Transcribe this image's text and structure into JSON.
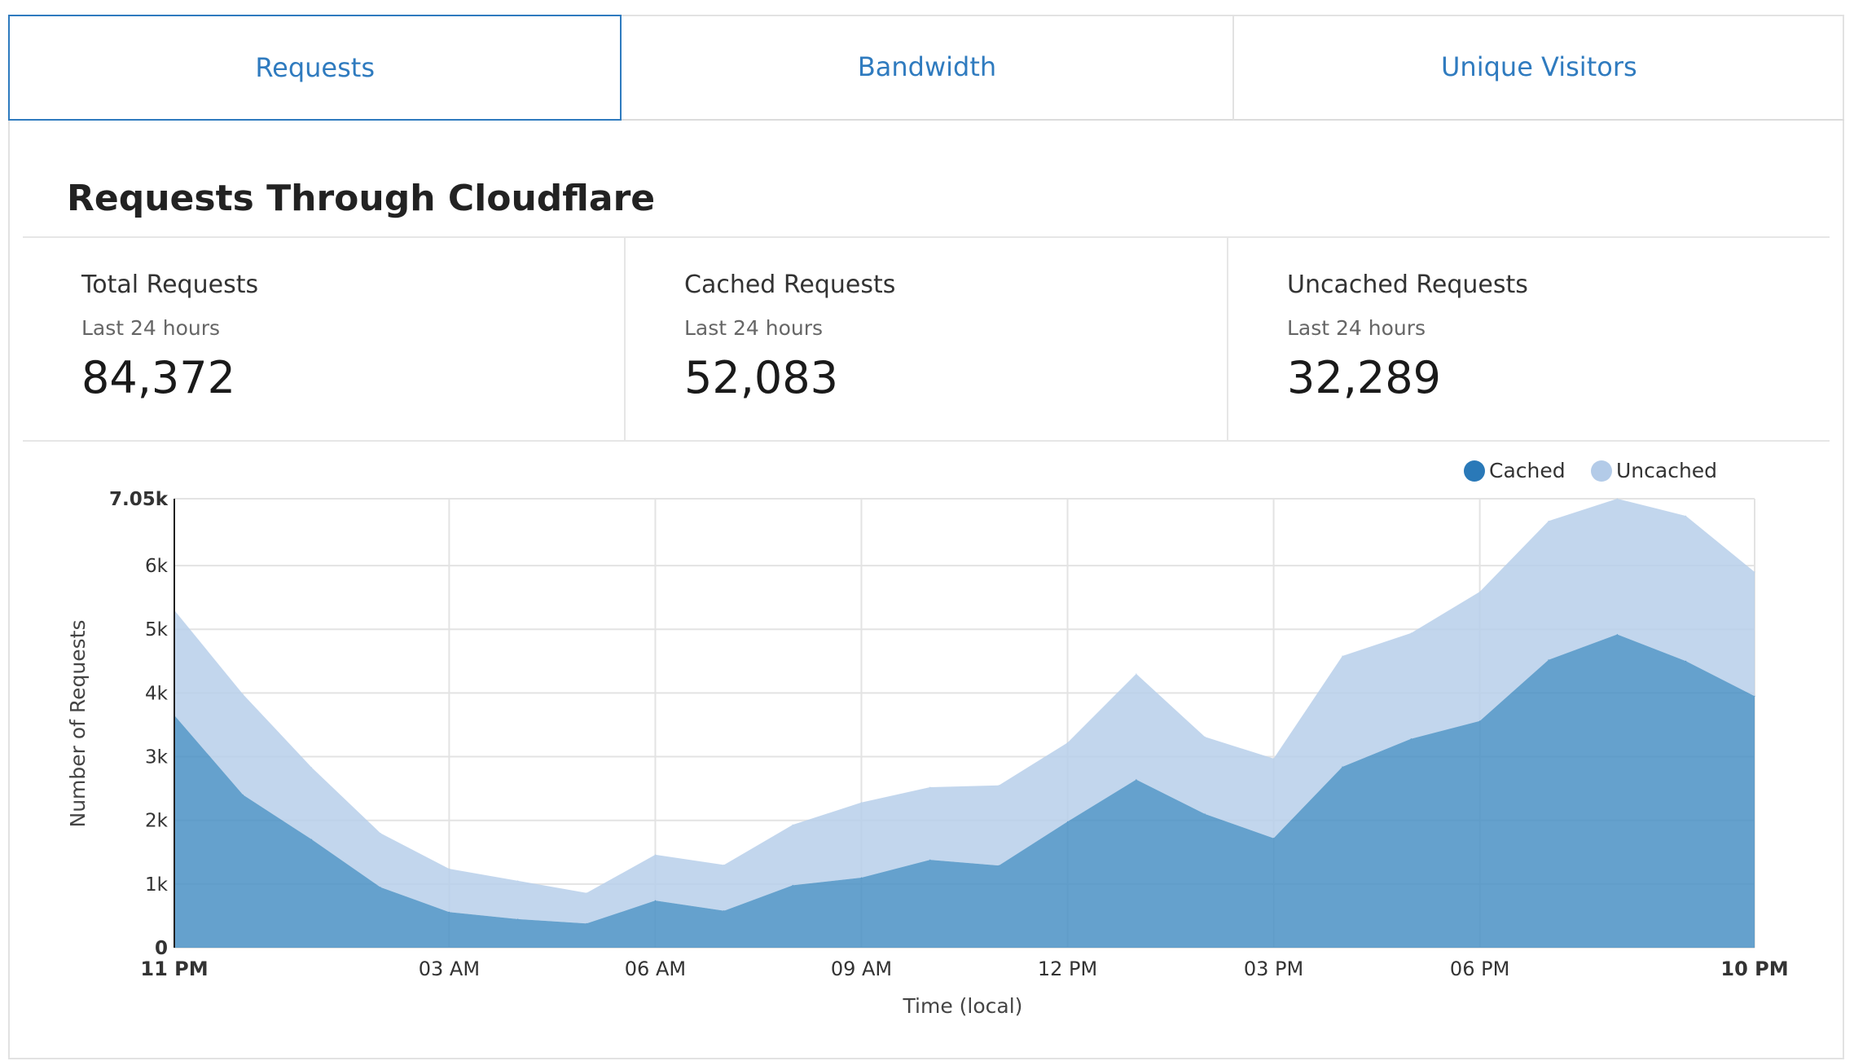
{
  "tabs": [
    {
      "label": "Requests",
      "active": true
    },
    {
      "label": "Bandwidth",
      "active": false
    },
    {
      "label": "Unique Visitors",
      "active": false
    }
  ],
  "section_title": "Requests Through Cloudflare",
  "stats": [
    {
      "label": "Total Requests",
      "sub": "Last 24 hours",
      "value": "84,372"
    },
    {
      "label": "Cached Requests",
      "sub": "Last 24 hours",
      "value": "52,083"
    },
    {
      "label": "Uncached Requests",
      "sub": "Last 24 hours",
      "value": "32,289"
    }
  ],
  "colors": {
    "accent": "#2f7bbf",
    "cached": "#4a90c4",
    "uncached": "#b7cfea"
  },
  "chart_data": {
    "type": "area",
    "stacked": true,
    "xlabel": "Time (local)",
    "ylabel": "Number of Requests",
    "ylim": [
      0,
      7050
    ],
    "yticks": [
      {
        "value": 0,
        "label": "0",
        "bold": true
      },
      {
        "value": 1000,
        "label": "1k"
      },
      {
        "value": 2000,
        "label": "2k"
      },
      {
        "value": 3000,
        "label": "3k"
      },
      {
        "value": 4000,
        "label": "4k"
      },
      {
        "value": 5000,
        "label": "5k"
      },
      {
        "value": 6000,
        "label": "6k"
      },
      {
        "value": 7050,
        "label": "7.05k",
        "bold": true
      }
    ],
    "x_hours": [
      0,
      1,
      2,
      3,
      4,
      5,
      6,
      7,
      8,
      9,
      10,
      11,
      12,
      13,
      14,
      15,
      16,
      17,
      18,
      19,
      20,
      21,
      22,
      23
    ],
    "xticks": [
      {
        "hour": 0,
        "label": "11 PM",
        "bold": true
      },
      {
        "hour": 4,
        "label": "03 AM"
      },
      {
        "hour": 7,
        "label": "06 AM"
      },
      {
        "hour": 10,
        "label": "09 AM"
      },
      {
        "hour": 13,
        "label": "12 PM"
      },
      {
        "hour": 16,
        "label": "03 PM"
      },
      {
        "hour": 19,
        "label": "06 PM"
      },
      {
        "hour": 23,
        "label": "10 PM",
        "bold": true
      }
    ],
    "legend": {
      "position": "top-right"
    },
    "series": [
      {
        "name": "Cached",
        "color": "#4a90c4",
        "values": [
          3650,
          2400,
          1700,
          950,
          560,
          450,
          380,
          740,
          580,
          980,
          1100,
          1380,
          1290,
          1980,
          2640,
          2100,
          1720,
          2840,
          3280,
          3560,
          4520,
          4920,
          4500,
          3950
        ]
      },
      {
        "name": "Uncached",
        "color": "#b7cfea",
        "values": [
          1650,
          1580,
          1130,
          850,
          680,
          600,
          480,
          720,
          720,
          950,
          1180,
          1140,
          1260,
          1240,
          1660,
          1210,
          1250,
          1740,
          1660,
          2030,
          2180,
          2130,
          2280,
          1950
        ]
      }
    ]
  }
}
